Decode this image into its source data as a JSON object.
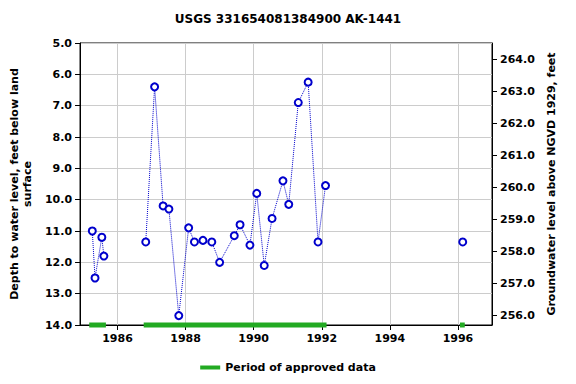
{
  "chart_data": {
    "type": "line",
    "title": "USGS 331654081384900 AK-1441",
    "x": [
      1985.26,
      1985.34,
      1985.54,
      1985.6,
      null,
      1986.83,
      1987.09,
      1987.34,
      1987.51,
      1987.8,
      1988.09,
      1988.26,
      1988.51,
      1988.77,
      1989.0,
      1989.43,
      1989.6,
      1989.89,
      1990.09,
      1990.31,
      1990.54,
      1990.86,
      1991.03,
      1991.31,
      1991.6,
      1991.89,
      1992.11,
      null,
      1996.14
    ],
    "values": [
      11.0,
      12.5,
      11.2,
      11.8,
      null,
      11.35,
      6.4,
      10.2,
      10.3,
      13.7,
      10.9,
      11.35,
      11.3,
      11.35,
      12.0,
      11.15,
      10.8,
      11.45,
      9.8,
      12.1,
      10.6,
      9.4,
      10.15,
      6.9,
      6.25,
      11.35,
      9.55,
      null,
      11.35
    ],
    "color": "#0000cc",
    "marker": "circle",
    "line_style": "dotted",
    "y_label": "Depth to water level, feet below land\nsurface",
    "y2_label": "Groundwater level above NGVD 1929, feet",
    "xlim": [
      1984.9,
      1997.0
    ],
    "xticks": [
      1986,
      1988,
      1990,
      1992,
      1994,
      1996
    ],
    "ylim": [
      5.0,
      14.0
    ],
    "yticks": [
      {
        "value": 5,
        "label": "5.0"
      },
      {
        "value": 6,
        "label": "6.0"
      },
      {
        "value": 7,
        "label": "7.0"
      },
      {
        "value": 8,
        "label": "8.0"
      },
      {
        "value": 9,
        "label": "9.0"
      },
      {
        "value": 10,
        "label": "10.0"
      },
      {
        "value": 11,
        "label": "11.0"
      },
      {
        "value": 12,
        "label": "12.0"
      },
      {
        "value": 13,
        "label": "13.0"
      },
      {
        "value": 14,
        "label": "14.0"
      }
    ],
    "y2lim": [
      255.7,
      264.5
    ],
    "y2ticks": [
      {
        "value": 256,
        "label": "256.0"
      },
      {
        "value": 257,
        "label": "257.0"
      },
      {
        "value": 258,
        "label": "258.0"
      },
      {
        "value": 259,
        "label": "259.0"
      },
      {
        "value": 260,
        "label": "260.0"
      },
      {
        "value": 261,
        "label": "261.0"
      },
      {
        "value": 262,
        "label": "262.0"
      },
      {
        "value": 263,
        "label": "263.0"
      },
      {
        "value": 264,
        "label": "264.0"
      }
    ],
    "approved_periods": {
      "name": "Period of approved data",
      "color": "#22aa22",
      "ranges": [
        [
          1985.17,
          1985.66
        ],
        [
          1986.77,
          1992.14
        ],
        [
          1996.06,
          1996.2
        ]
      ]
    },
    "legend": "bottom",
    "grid": true
  }
}
